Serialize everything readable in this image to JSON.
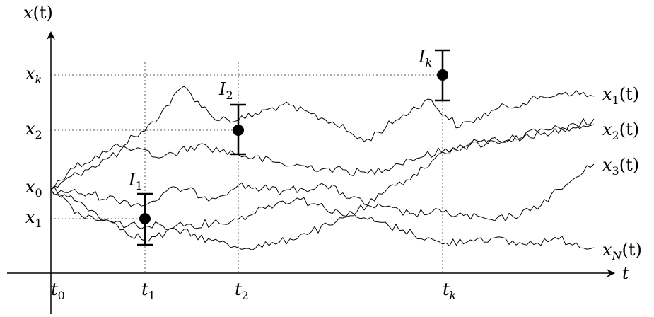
{
  "axes": {
    "y_label_var": "x",
    "y_label_arg": "(t)",
    "x_label": "t"
  },
  "time_ticks": [
    {
      "name": "t",
      "sub": "0"
    },
    {
      "name": "t",
      "sub": "1"
    },
    {
      "name": "t",
      "sub": "2"
    },
    {
      "name": "t",
      "sub": "k"
    }
  ],
  "state_ticks": [
    {
      "name": "x",
      "sub": "k"
    },
    {
      "name": "x",
      "sub": "2"
    },
    {
      "name": "x",
      "sub": "0"
    },
    {
      "name": "x",
      "sub": "1"
    }
  ],
  "intervals": [
    {
      "name": "I",
      "sub": "1"
    },
    {
      "name": "I",
      "sub": "2"
    },
    {
      "name": "I",
      "sub": "k"
    }
  ],
  "paths": [
    {
      "name": "x",
      "sub": "1",
      "arg": "(t)"
    },
    {
      "name": "x",
      "sub": "2",
      "arg": "(t)"
    },
    {
      "name": "x",
      "sub": "3",
      "arg": "(t)"
    },
    {
      "name": "x",
      "sub": "N",
      "arg": "(t)"
    }
  ],
  "colors": {
    "ink": "#000000",
    "guide": "#555555"
  }
}
